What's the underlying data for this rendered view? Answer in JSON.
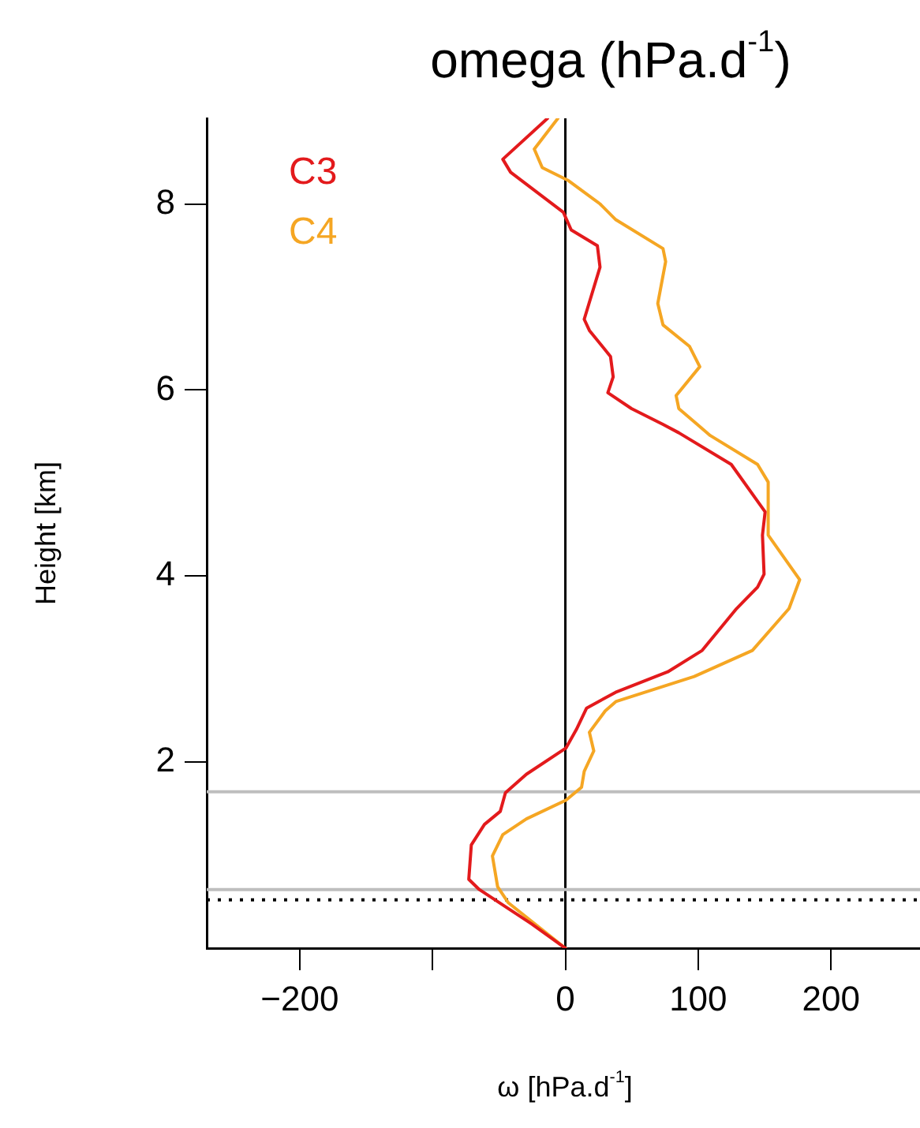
{
  "chart_data": {
    "type": "line",
    "title": "omega (hPa.d$^{-1}$)",
    "xlabel": "ω [hPa.d$^{-1}$]",
    "ylabel": "Height [km]",
    "xlim": [
      -270,
      267
    ],
    "xticks": [
      -200,
      {
        "value": -100,
        "label": null
      },
      0,
      100,
      200
    ],
    "ylim": [
      0,
      8.92
    ],
    "yticks": [
      2,
      4,
      6,
      8
    ],
    "grid": false,
    "legend": "top left",
    "line_style": "solid",
    "marker": "none",
    "ref_lines": [
      {
        "axis": "x",
        "value": 0,
        "label": null,
        "color": "#000000",
        "line_style": "solid"
      },
      {
        "axis": "y",
        "value": 1.68,
        "label": null,
        "color": "#bebebe",
        "line_style": "solid"
      },
      {
        "axis": "y",
        "value": 0.63,
        "label": null,
        "color": "#bebebe",
        "line_style": "solid"
      },
      {
        "axis": "y",
        "value": 0.52,
        "label": null,
        "color": "#000000",
        "line_style": "dotted"
      }
    ],
    "series": [
      {
        "name": "C3",
        "color": "#e31a1c",
        "x": [
          -13.4,
          -47.1,
          -41.2,
          -1.5,
          4.4,
          24.1,
          26.1,
          14.2,
          18.1,
          34.0,
          36.0,
          32.0,
          49.8,
          73.5,
          85.4,
          124.9,
          150.4,
          148.4,
          149.6,
          144.7,
          128.9,
          103.0,
          77.1,
          37.8,
          16.0,
          8.3,
          0.4,
          -29.3,
          -45.1,
          -49.0,
          -60.9,
          -70.8,
          -72.7,
          -64.8,
          -25.3,
          0
        ],
        "values": [
          8.92,
          8.48,
          8.34,
          7.91,
          7.72,
          7.55,
          7.32,
          6.76,
          6.64,
          6.36,
          6.14,
          5.97,
          5.8,
          5.63,
          5.54,
          5.2,
          4.69,
          4.44,
          4.02,
          3.88,
          3.65,
          3.2,
          2.97,
          2.75,
          2.58,
          2.35,
          2.15,
          1.87,
          1.67,
          1.47,
          1.33,
          1.11,
          0.74,
          0.63,
          0.26,
          0
        ]
      },
      {
        "name": "C4",
        "color": "#f5a623",
        "x": [
          -5.6,
          -23.4,
          -17.4,
          2.4,
          26.1,
          38.0,
          73.5,
          75.5,
          69.6,
          73.5,
          93.4,
          101.2,
          83.4,
          85.4,
          99.3,
          109.1,
          144.7,
          152.7,
          152.7,
          176.4,
          168.4,
          140.8,
          97,
          38.0,
          30.0,
          18.1,
          21.4,
          14.2,
          12.2,
          0.4,
          -29.3,
          -47.1,
          -54.9,
          -51.0,
          -43.1,
          0
        ],
        "values": [
          8.92,
          8.59,
          8.39,
          8.25,
          8.0,
          7.83,
          7.52,
          7.38,
          6.93,
          6.7,
          6.47,
          6.25,
          5.94,
          5.8,
          5.63,
          5.51,
          5.2,
          5.01,
          4.44,
          3.96,
          3.65,
          3.2,
          2.92,
          2.65,
          2.55,
          2.32,
          2.12,
          1.9,
          1.73,
          1.59,
          1.39,
          1.22,
          0.99,
          0.66,
          0.49,
          0
        ]
      }
    ]
  }
}
